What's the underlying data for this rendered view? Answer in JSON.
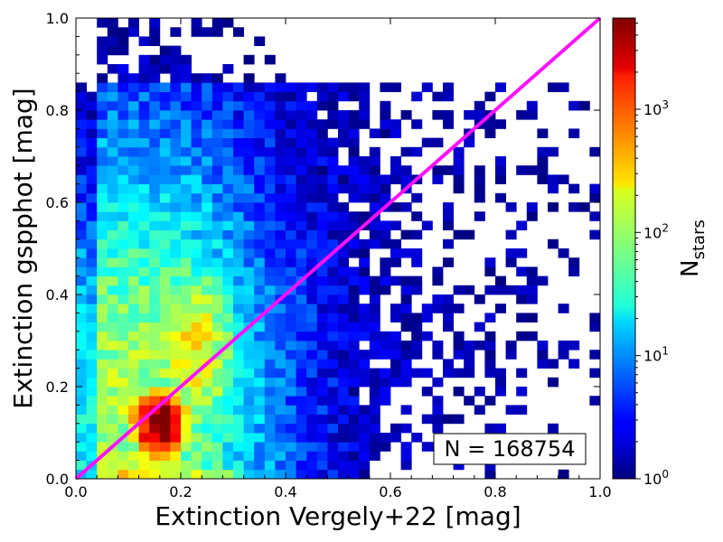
{
  "chart_data": {
    "type": "heatmap",
    "title": "",
    "xlabel": "Extinction Vergely+22 [mag]",
    "ylabel": "Extinction gspphot [mag]",
    "xlim": [
      0.0,
      1.0
    ],
    "ylim": [
      0.0,
      1.0
    ],
    "x_ticks": [
      "0.0",
      "0.2",
      "0.4",
      "0.6",
      "0.8",
      "1.0"
    ],
    "y_ticks": [
      "0.0",
      "0.2",
      "0.4",
      "0.6",
      "0.8",
      "1.0"
    ],
    "bins": 50,
    "colormap": "jet",
    "color_scale": "log",
    "colorbar": {
      "label_main": "N",
      "label_sub": "stars",
      "range": [
        1,
        5500
      ],
      "ticks": [
        {
          "value": 1,
          "base": "10",
          "exp": "0"
        },
        {
          "value": 10,
          "base": "10",
          "exp": "1"
        },
        {
          "value": 100,
          "base": "10",
          "exp": "2"
        },
        {
          "value": 1000,
          "base": "10",
          "exp": "3"
        }
      ]
    },
    "one_to_one_line": {
      "x": [
        0.0,
        1.0
      ],
      "y": [
        0.0,
        1.0
      ],
      "color": "#ff10ff"
    },
    "annotation": "N = 168754",
    "grid": false
  }
}
